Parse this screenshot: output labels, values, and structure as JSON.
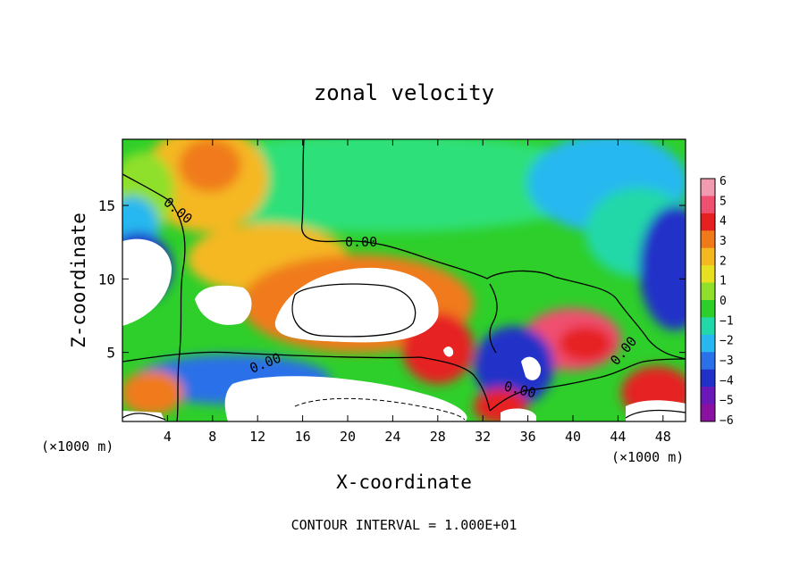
{
  "chart_data": {
    "type": "heatmap",
    "title": "zonal velocity",
    "xlabel": "X-coordinate",
    "ylabel": "Z-coordinate",
    "x_unit": "(×1000 m)",
    "x_unit_right": "(×1000 m)",
    "footer": "CONTOUR INTERVAL = 1.000E+01",
    "xlim": [
      0,
      50
    ],
    "ylim": [
      0.3,
      19.5
    ],
    "x_ticks": [
      4,
      8,
      12,
      16,
      20,
      24,
      28,
      32,
      36,
      40,
      44,
      48
    ],
    "y_ticks": [
      5,
      10,
      15
    ],
    "colorbar": {
      "levels": [
        6,
        5,
        4,
        3,
        2,
        1,
        0,
        -1,
        -2,
        -3,
        -4,
        -5,
        -6
      ],
      "colors": [
        "#f29bb0",
        "#f05070",
        "#e62020",
        "#f07a1a",
        "#f5b820",
        "#e6e020",
        "#8fe02a",
        "#2ecf2a",
        "#22d8a8",
        "#28b8f0",
        "#2a70e8",
        "#2030c8",
        "#6a18b8",
        "#8a10a0"
      ]
    },
    "contour_labels": [
      "0.00",
      "0.00",
      "0.00",
      "0.00",
      "0.00"
    ],
    "grid": false
  }
}
